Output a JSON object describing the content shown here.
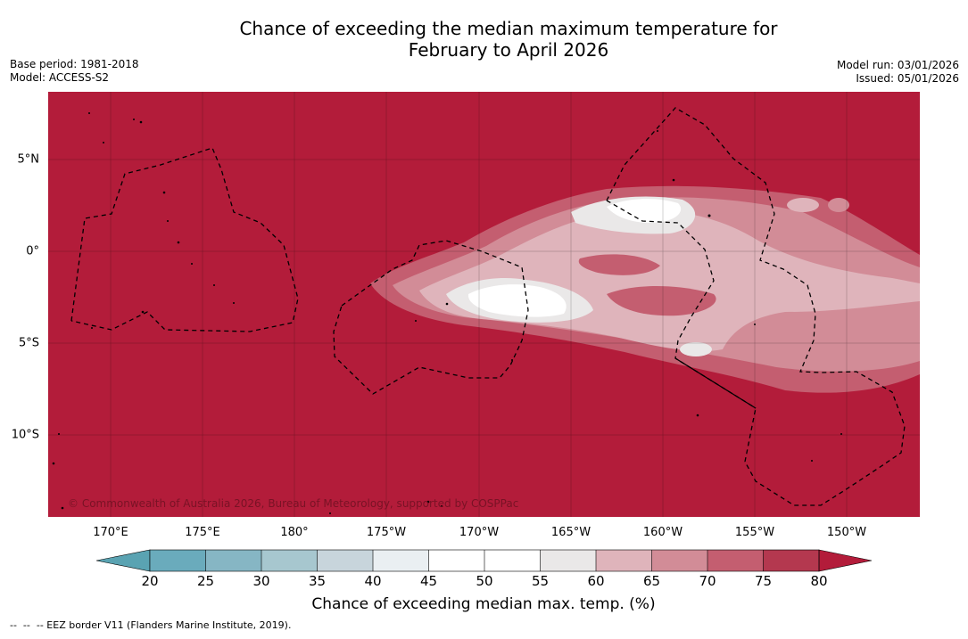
{
  "title_line1": "Chance of exceeding the median maximum temperature for",
  "title_line2": "February to April 2026",
  "meta_left": {
    "base_period": "Base period: 1981-2018",
    "model": "Model: ACCESS-S2"
  },
  "meta_right": {
    "model_run": "Model run: 03/01/2026",
    "issued": "Issued: 05/01/2026"
  },
  "map": {
    "lon_labels": [
      "170°E",
      "175°E",
      "180°",
      "175°W",
      "170°W",
      "165°W",
      "160°W",
      "155°W",
      "150°W"
    ],
    "lat_labels": [
      "5°N",
      "0°",
      "5°S",
      "10°S"
    ],
    "copyright": "© Commonwealth of Australia 2026, Bureau of Meteorology, supported by COSPPac",
    "dominant_category": "80",
    "colors": {
      "c20": "#5aa3b2",
      "c25": "#6aabbc",
      "c30": "#86b6c4",
      "c35": "#a7c7cf",
      "c40": "#c8d5dc",
      "c45": "#eaeff2",
      "c50": "#ffffff",
      "c55": "#ffffff",
      "c60": "#eae8e8",
      "c65": "#dfb4bb",
      "c70": "#d28c97",
      "c75": "#c45e70",
      "c80": "#b4384f",
      "c85": "#b31c3a"
    }
  },
  "colorbar": {
    "ticks": [
      "20",
      "25",
      "30",
      "35",
      "40",
      "45",
      "50",
      "55",
      "60",
      "65",
      "70",
      "75",
      "80"
    ],
    "title": "Chance of exceeding median max. temp. (%)"
  },
  "footer": "--  --  -- EEZ border V11 (Flanders Marine Institute, 2019)."
}
